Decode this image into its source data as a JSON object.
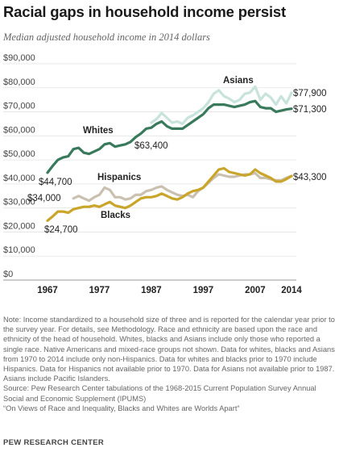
{
  "header": {
    "title": "Racial gaps in household income persist",
    "subtitle": "Median adjusted household income in 2014 dollars"
  },
  "chart_data": {
    "type": "line",
    "title": "Racial gaps in household income persist",
    "subtitle": "Median adjusted household income in 2014 dollars",
    "xlabel": "",
    "ylabel": "",
    "xlim": [
      1967,
      2014
    ],
    "ylim": [
      0,
      90000
    ],
    "grid": true,
    "legend": "direct labels",
    "x_tick_labels": [
      "1967",
      "1977",
      "1987",
      "1997",
      "2007",
      "2014"
    ],
    "y_tick_labels": [
      "$0",
      "$10,000",
      "$20,000",
      "$30,000",
      "$40,000",
      "$50,000",
      "$60,000",
      "$70,000",
      "$80,000",
      "$90,000"
    ],
    "series": [
      {
        "name": "Whites",
        "color": "#3a7a5c",
        "x": [
          1967,
          1968,
          1969,
          1970,
          1971,
          1972,
          1973,
          1974,
          1975,
          1976,
          1977,
          1978,
          1979,
          1980,
          1981,
          1982,
          1983,
          1984,
          1985,
          1986,
          1987,
          1988,
          1989,
          1990,
          1991,
          1992,
          1993,
          1994,
          1995,
          1996,
          1997,
          1998,
          1999,
          2000,
          2001,
          2002,
          2003,
          2004,
          2005,
          2006,
          2007,
          2008,
          2009,
          2010,
          2011,
          2012,
          2013,
          2014
        ],
        "values": [
          44700,
          47500,
          50000,
          51000,
          51500,
          54500,
          55000,
          53000,
          52500,
          53500,
          54500,
          56500,
          57000,
          55500,
          56000,
          56500,
          57500,
          59500,
          61000,
          63000,
          63400,
          65000,
          66000,
          64000,
          63000,
          63000,
          63000,
          64500,
          66000,
          67500,
          69000,
          71500,
          73000,
          73000,
          73000,
          72500,
          72000,
          72500,
          73000,
          74000,
          74500,
          72000,
          71500,
          71500,
          70000,
          70500,
          71000,
          71300
        ]
      },
      {
        "name": "Asians",
        "color": "#c8e3db",
        "x": [
          1987,
          1988,
          1989,
          1990,
          1991,
          1992,
          1993,
          1994,
          1995,
          1996,
          1997,
          1998,
          1999,
          2000,
          2001,
          2002,
          2003,
          2004,
          2005,
          2006,
          2007,
          2008,
          2009,
          2010,
          2011,
          2012,
          2013,
          2014
        ],
        "values": [
          65500,
          67000,
          69500,
          67500,
          65500,
          66000,
          65000,
          67500,
          68500,
          70000,
          71500,
          74000,
          77500,
          79000,
          76500,
          75500,
          74000,
          75000,
          77500,
          78000,
          80500,
          75000,
          77500,
          76000,
          73000,
          76500,
          73500,
          77900
        ]
      },
      {
        "name": "Hispanics",
        "color": "#c9c0b0",
        "x": [
          1972,
          1973,
          1974,
          1975,
          1976,
          1977,
          1978,
          1979,
          1980,
          1981,
          1982,
          1983,
          1984,
          1985,
          1986,
          1987,
          1988,
          1989,
          1990,
          1991,
          1992,
          1993,
          1994,
          1995,
          1996,
          1997,
          1998,
          1999,
          2000,
          2001,
          2002,
          2003,
          2004,
          2005,
          2006,
          2007,
          2008,
          2009,
          2010,
          2011,
          2012,
          2013,
          2014
        ],
        "values": [
          34000,
          35000,
          34000,
          33000,
          34500,
          35500,
          38500,
          37500,
          34500,
          34500,
          33500,
          34000,
          35500,
          35500,
          37000,
          37500,
          38500,
          39000,
          37500,
          36500,
          35500,
          35000,
          35500,
          34500,
          37000,
          38500,
          40500,
          42500,
          44000,
          43500,
          43000,
          43000,
          43500,
          44000,
          44000,
          44500,
          42500,
          42500,
          42000,
          41500,
          41500,
          42500,
          43300
        ]
      },
      {
        "name": "Blacks",
        "color": "#c9a52a",
        "x": [
          1967,
          1968,
          1969,
          1970,
          1971,
          1972,
          1973,
          1974,
          1975,
          1976,
          1977,
          1978,
          1979,
          1980,
          1981,
          1982,
          1983,
          1984,
          1985,
          1986,
          1987,
          1988,
          1989,
          1990,
          1991,
          1992,
          1993,
          1994,
          1995,
          1996,
          1997,
          1998,
          1999,
          2000,
          2001,
          2002,
          2003,
          2004,
          2005,
          2006,
          2007,
          2008,
          2009,
          2010,
          2011,
          2012,
          2013,
          2014
        ],
        "values": [
          24700,
          26500,
          28500,
          28500,
          28000,
          29500,
          30000,
          30500,
          30500,
          31000,
          30500,
          31500,
          32500,
          31000,
          30500,
          30000,
          31000,
          32500,
          34000,
          34500,
          34500,
          35000,
          36000,
          35000,
          34000,
          33500,
          34500,
          36000,
          37000,
          37500,
          38500,
          41000,
          43500,
          46000,
          46500,
          45000,
          44500,
          44000,
          43500,
          44000,
          46000,
          44500,
          43500,
          42500,
          41000,
          41000,
          42000,
          43300
        ]
      }
    ],
    "annotations": {
      "whites_1967": "$44,700",
      "whites_1987": "$63,400",
      "whites_2014": "$71,300",
      "asians_2014": "$77,900",
      "hispanics_1972": "$34,000",
      "hispanics_2014": "$43,300",
      "blacks_1967": "$24,700"
    }
  },
  "notes": {
    "note": "Note: Income standardized to a household size of three and is reported for the calendar year prior to the survey year. For details, see Methodology. Race and ethnicity are based upon the race and ethnicity of the head of household. Whites, blacks and Asians include only those who reported a single race. Native Americans and mixed-race groups not shown. Data for whites, blacks and Asians from 1970 to 2014 include only non-Hispanics. Data for whites and blacks prior to 1970 include Hispanics. Data for Hispanics not available prior to 1970. Data for Asians not available prior to 1987. Asians include Pacific Islanders.",
    "source": "Source: Pew Research Center tabulations of the 1968-2015 Current Population Survey Annual Social and Economic Supplement (IPUMS)",
    "report": "“On Views of Race and Inequality, Blacks and Whites are Worlds Apart”"
  },
  "footer": {
    "credit": "PEW RESEARCH CENTER"
  }
}
